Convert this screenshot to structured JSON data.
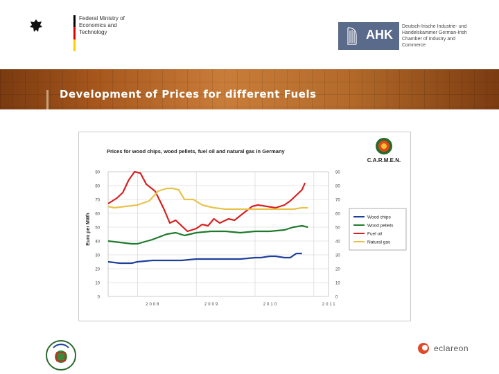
{
  "header": {
    "ministry_text": "Federal Ministry of Economics and Technology",
    "ahk_abbr": "AHK",
    "ahk_text": "Deutsch-Irische Industrie- und Handelskammer German-Irish Chamber of Industry and Commerce"
  },
  "banner": {
    "title": "Development of Prices for different Fuels"
  },
  "footer": {
    "eclareon": "eclareon"
  },
  "colors": {
    "wood_chips": "#1f3f9a",
    "wood_pellets": "#1e7a2a",
    "fuel_oil": "#d62020",
    "natural_gas": "#e8c24a"
  },
  "chart_data": {
    "type": "line",
    "title": "Prices for wood chips, wood pellets, fuel oil and natural gas in Germany",
    "logo_text": "C.A.R.M.E.N.",
    "ylabel": "Euro per MWh",
    "ylim": [
      0,
      90
    ],
    "yticks": [
      "0",
      "10",
      "20",
      "30",
      "40",
      "50",
      "60",
      "70",
      "80",
      "90"
    ],
    "x_year_labels": [
      "2008",
      "2009",
      "2010",
      "2011"
    ],
    "x_start": "2007.5",
    "x_end": "2011.25",
    "grid": true,
    "legend_position": "right",
    "series": [
      {
        "name": "Wood chips",
        "color": "#1f3f9a",
        "x": [
          2007.5,
          2007.7,
          2007.9,
          2008.0,
          2008.25,
          2008.5,
          2008.75,
          2009.0,
          2009.25,
          2009.5,
          2009.75,
          2010.0,
          2010.1,
          2010.25,
          2010.35,
          2010.5,
          2010.6,
          2010.7,
          2010.8
        ],
        "y": [
          25,
          24,
          24,
          25,
          26,
          26,
          26,
          27,
          27,
          27,
          27,
          28,
          28,
          29,
          29,
          28,
          28,
          31,
          31
        ]
      },
      {
        "name": "Wood pellets",
        "color": "#1e7a2a",
        "x": [
          2007.5,
          2007.7,
          2007.9,
          2008.0,
          2008.25,
          2008.5,
          2008.65,
          2008.8,
          2009.0,
          2009.25,
          2009.5,
          2009.75,
          2010.0,
          2010.25,
          2010.5,
          2010.65,
          2010.8,
          2010.9
        ],
        "y": [
          40,
          39,
          38,
          38,
          41,
          45,
          46,
          44,
          46,
          47,
          47,
          46,
          47,
          47,
          48,
          50,
          51,
          50
        ]
      },
      {
        "name": "Fuel oil",
        "color": "#d62020",
        "x": [
          2007.5,
          2007.65,
          2007.75,
          2007.85,
          2007.95,
          2008.05,
          2008.15,
          2008.3,
          2008.45,
          2008.55,
          2008.65,
          2008.75,
          2008.85,
          2009.0,
          2009.1,
          2009.2,
          2009.3,
          2009.4,
          2009.55,
          2009.65,
          2009.8,
          2009.95,
          2010.05,
          2010.2,
          2010.35,
          2010.5,
          2010.6,
          2010.7,
          2010.8,
          2010.85
        ],
        "y": [
          67,
          71,
          75,
          84,
          90,
          89,
          81,
          76,
          63,
          53,
          55,
          51,
          47,
          49,
          52,
          51,
          56,
          53,
          56,
          55,
          60,
          65,
          66,
          65,
          64,
          66,
          69,
          73,
          77,
          82
        ]
      },
      {
        "name": "Natural gas",
        "color": "#e8c24a",
        "x": [
          2007.5,
          2007.6,
          2007.8,
          2008.0,
          2008.2,
          2008.35,
          2008.5,
          2008.6,
          2008.7,
          2008.8,
          2008.95,
          2009.1,
          2009.3,
          2009.5,
          2009.75,
          2010.0,
          2010.25,
          2010.5,
          2010.65,
          2010.8,
          2010.9
        ],
        "y": [
          65,
          64,
          65,
          66,
          69,
          76,
          78,
          78,
          77,
          70,
          70,
          66,
          64,
          63,
          63,
          63,
          63,
          63,
          63,
          64,
          64
        ]
      }
    ]
  }
}
